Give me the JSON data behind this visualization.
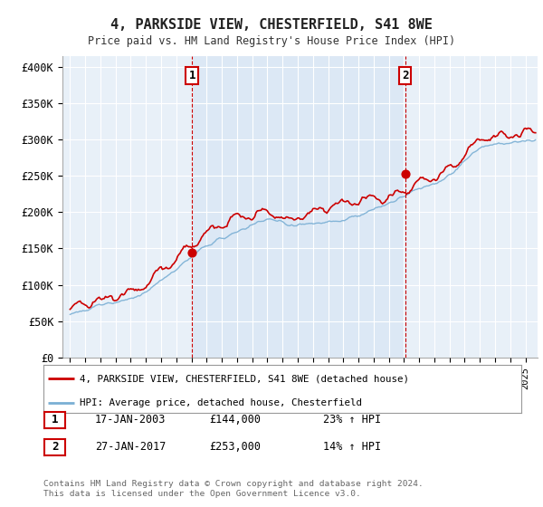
{
  "title": "4, PARKSIDE VIEW, CHESTERFIELD, S41 8WE",
  "subtitle": "Price paid vs. HM Land Registry's House Price Index (HPI)",
  "ylabel_ticks": [
    "£0",
    "£50K",
    "£100K",
    "£150K",
    "£200K",
    "£250K",
    "£300K",
    "£350K",
    "£400K"
  ],
  "ytick_values": [
    0,
    50000,
    100000,
    150000,
    200000,
    250000,
    300000,
    350000,
    400000
  ],
  "ylim": [
    0,
    415000
  ],
  "xlim_start": 1994.5,
  "xlim_end": 2025.8,
  "red_color": "#cc0000",
  "blue_color": "#7aafd4",
  "shade_color": "#dce8f5",
  "marker_color": "#cc0000",
  "sale1_x": 2003.04,
  "sale1_y": 144000,
  "sale1_label": "1",
  "sale1_date": "17-JAN-2003",
  "sale1_price": "£144,000",
  "sale1_hpi": "23% ↑ HPI",
  "sale2_x": 2017.07,
  "sale2_y": 253000,
  "sale2_label": "2",
  "sale2_date": "27-JAN-2017",
  "sale2_price": "£253,000",
  "sale2_hpi": "14% ↑ HPI",
  "legend_line1": "4, PARKSIDE VIEW, CHESTERFIELD, S41 8WE (detached house)",
  "legend_line2": "HPI: Average price, detached house, Chesterfield",
  "footer1": "Contains HM Land Registry data © Crown copyright and database right 2024.",
  "footer2": "This data is licensed under the Open Government Licence v3.0.",
  "bg_color": "#ffffff",
  "plot_bg_color": "#e8f0f8",
  "grid_color": "#ffffff"
}
